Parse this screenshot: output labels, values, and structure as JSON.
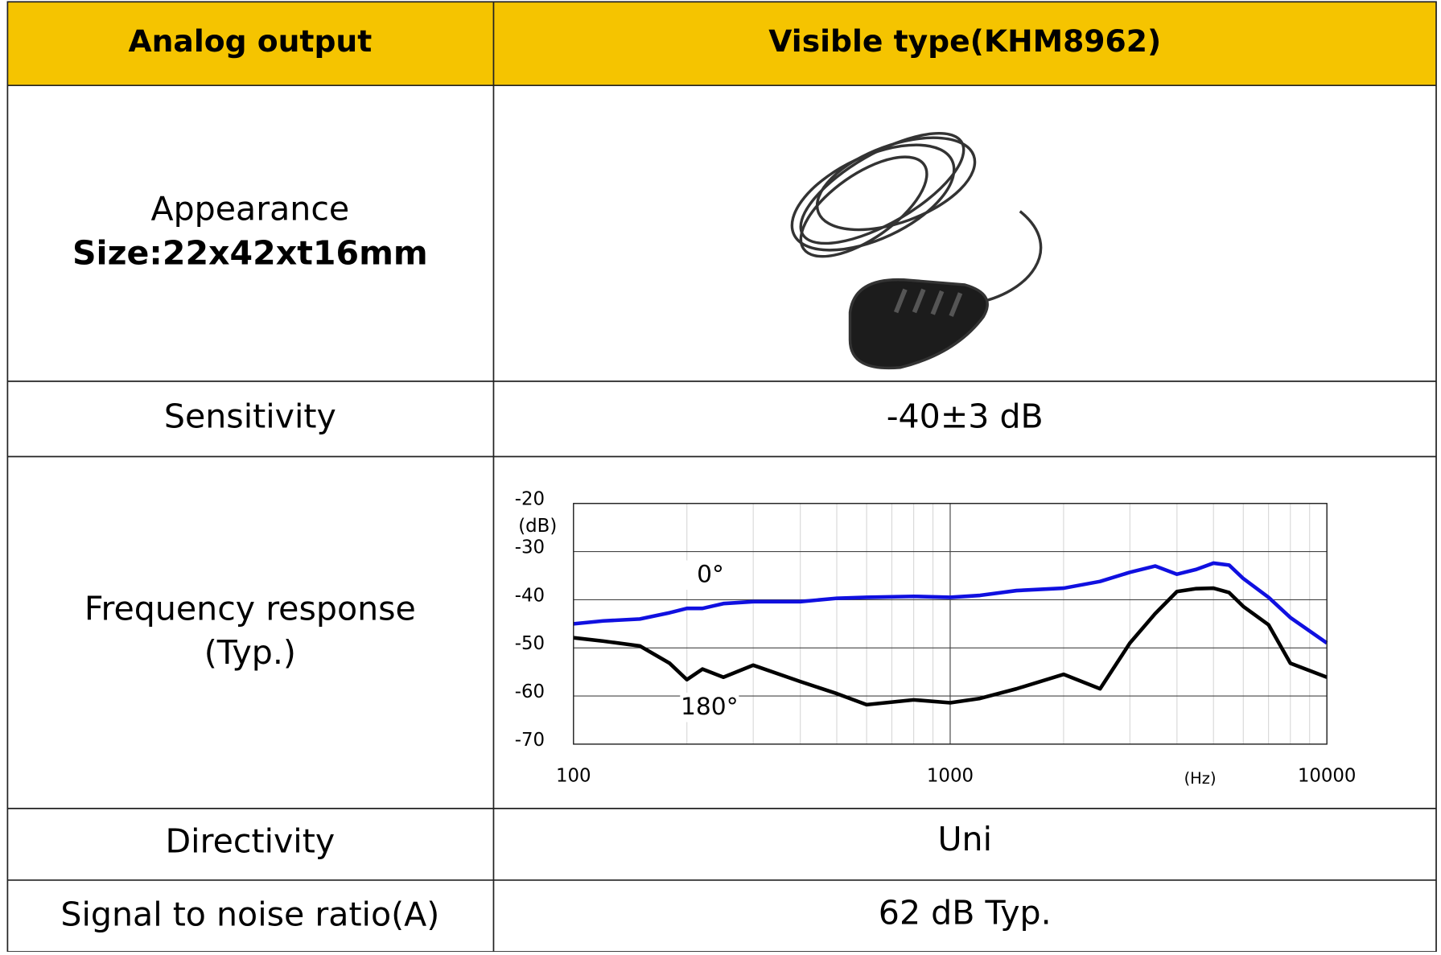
{
  "table": {
    "header": [
      "Analog output",
      "Visible type(KHM8962)"
    ],
    "rows": [
      {
        "label": "Appearance",
        "sublabel": "Size:22x42xt16mm"
      },
      {
        "label": "Sensitivity",
        "value": "-40±3 dB"
      },
      {
        "label": "Frequency response",
        "sublabel": "(Typ.)"
      },
      {
        "label": "Directivity",
        "value": "Uni"
      },
      {
        "label": "Signal to noise ratio(A)",
        "value": "62 dB Typ."
      }
    ]
  },
  "chart_data": {
    "type": "line",
    "xscale": "log",
    "grid": true,
    "x_unit": "(Hz)",
    "y_unit": "(dB)",
    "x": [
      100,
      120,
      150,
      180,
      200,
      220,
      250,
      300,
      400,
      500,
      600,
      800,
      1000,
      1200,
      1500,
      2000,
      2500,
      3000,
      3500,
      4000,
      4500,
      5000,
      5500,
      6000,
      7000,
      8000,
      10000
    ],
    "series": [
      {
        "name": "0°",
        "color": "#1010e0",
        "values": [
          -45,
          -44.4,
          -44,
          -42.7,
          -41.8,
          -41.8,
          -40.8,
          -40.4,
          -40.4,
          -39.7,
          -39.5,
          -39.3,
          -39.5,
          -39.1,
          -38.1,
          -37.6,
          -36.2,
          -34.3,
          -33,
          -34.7,
          -33.7,
          -32.4,
          -32.8,
          -35.6,
          -39.5,
          -43.7,
          -49
        ]
      },
      {
        "name": "180°",
        "color": "#000000",
        "values": [
          -47.9,
          -48.6,
          -49.6,
          -53.2,
          -56.6,
          -54.4,
          -56.1,
          -53.6,
          -57,
          -59.5,
          -61.8,
          -60.8,
          -61.4,
          -60.5,
          -58.5,
          -55.5,
          -58.5,
          -49,
          -42.9,
          -38.3,
          -37.7,
          -37.6,
          -38.5,
          -41.4,
          -45.2,
          -53.2,
          -56.1
        ]
      }
    ],
    "xlim": [
      100,
      10000
    ],
    "xticks": [
      100,
      1000,
      10000
    ],
    "minor_xticks": [
      200,
      300,
      400,
      500,
      600,
      700,
      800,
      900,
      2000,
      3000,
      4000,
      5000,
      6000,
      7000,
      8000,
      9000
    ],
    "ylim": [
      -70,
      -20
    ],
    "yticks": [
      -20,
      -30,
      -40,
      -50,
      -60,
      -70
    ]
  }
}
